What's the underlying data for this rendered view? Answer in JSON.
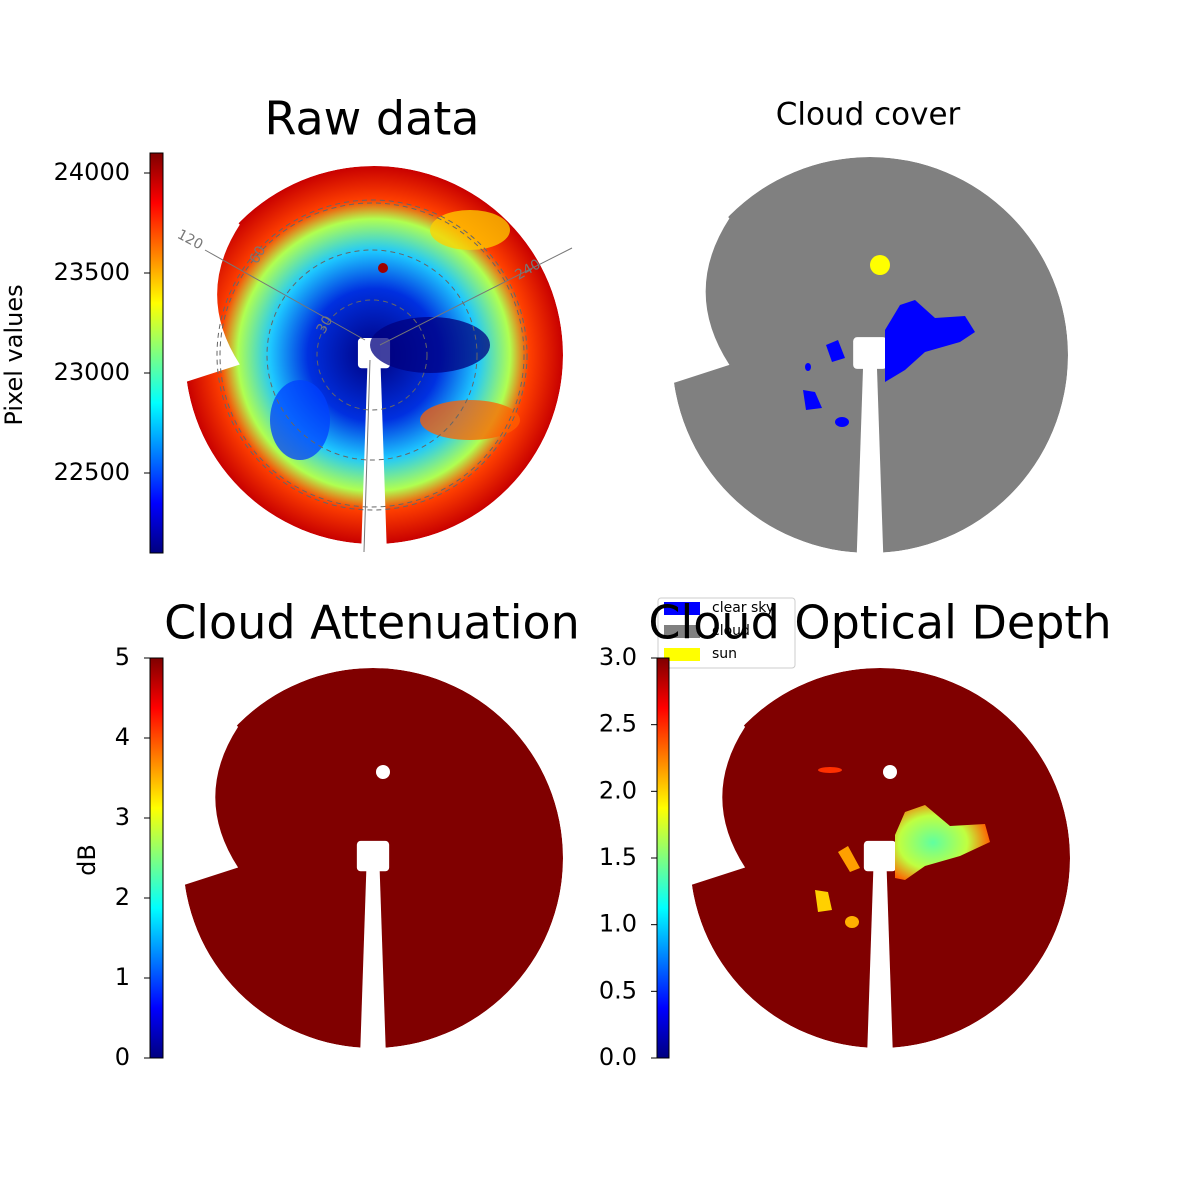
{
  "chart_data": [
    {
      "type": "image",
      "title": "Raw data",
      "colormap": "jet",
      "ylabel": "Pixel values",
      "ylim": [
        22100,
        24100
      ],
      "yticks": [
        22500,
        23000,
        23500,
        24000
      ],
      "ring_labels": [
        "120",
        "60",
        "30",
        "240"
      ]
    },
    {
      "type": "categorical-image",
      "title": "Cloud cover",
      "legend_corner": "lower left",
      "series": [
        {
          "name": "clear sky",
          "color": "#0000ff"
        },
        {
          "name": "cloud",
          "color": "#808080"
        },
        {
          "name": "sun",
          "color": "#ffff00"
        }
      ]
    },
    {
      "type": "image",
      "title": "Cloud Attenuation",
      "colormap": "jet",
      "ylabel": "dB",
      "ylim": [
        0,
        5
      ],
      "yticks": [
        0,
        1,
        2,
        3,
        4,
        5
      ]
    },
    {
      "type": "image",
      "title": "Cloud Optical Depth",
      "colormap": "jet",
      "ylim": [
        0,
        3
      ],
      "yticks": [
        {
          "value": 0,
          "label": "0.0"
        },
        {
          "value": 0.5,
          "label": "0.5"
        },
        {
          "value": 1,
          "label": "1.0"
        },
        {
          "value": 1.5,
          "label": "1.5"
        },
        {
          "value": 2,
          "label": "2.0"
        },
        {
          "value": 2.5,
          "label": "2.5"
        },
        {
          "value": 3,
          "label": "3.0"
        }
      ]
    }
  ]
}
